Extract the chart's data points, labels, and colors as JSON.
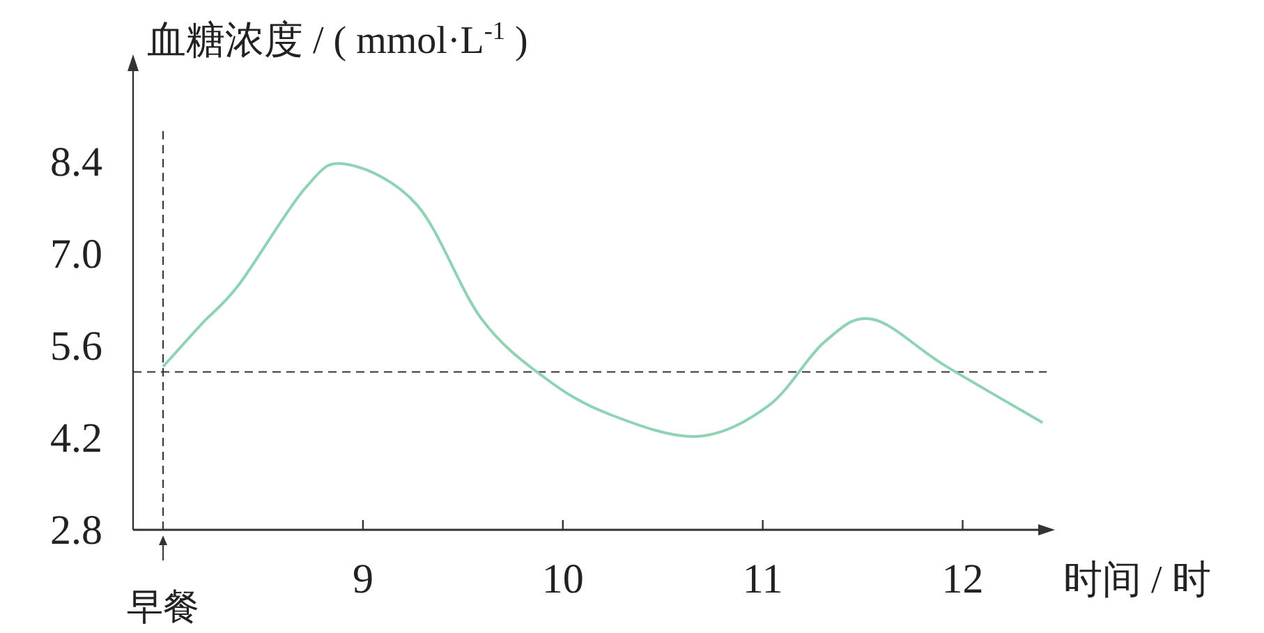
{
  "chart_data": {
    "type": "line",
    "ylabel": "血糖浓度 / ( mmol·L$^{-1}$ )",
    "xlabel": "时间 / 时",
    "xlim": [
      7.85,
      12.42
    ],
    "ylim": [
      2.8,
      9.9
    ],
    "xticks": [
      9,
      10,
      11,
      12
    ],
    "yticks": [
      2.8,
      4.2,
      5.6,
      {
        "value": 7,
        "label": "7.0"
      },
      8.4
    ],
    "grid": false,
    "marker": "none",
    "line_style": "solid",
    "series": [
      {
        "color": "#8fd3b5",
        "x": [
          8.0,
          8.19,
          8.38,
          8.71,
          8.91,
          9.27,
          9.59,
          9.91,
          10.23,
          10.67,
          11.03,
          11.31,
          11.55,
          11.91,
          12.4
        ],
        "values": [
          5.28,
          5.92,
          6.53,
          7.99,
          8.36,
          7.74,
          6.02,
          5.11,
          4.56,
          4.22,
          4.69,
          5.66,
          6.0,
          5.3,
          4.43
        ]
      }
    ],
    "ref_lines": [
      {
        "axis": "x",
        "value": 8,
        "label": "早餐",
        "color": "#333333",
        "line_style": "dashed"
      },
      {
        "axis": "y",
        "value": 5.2,
        "color": "#333333",
        "line_style": "dashed"
      }
    ]
  }
}
